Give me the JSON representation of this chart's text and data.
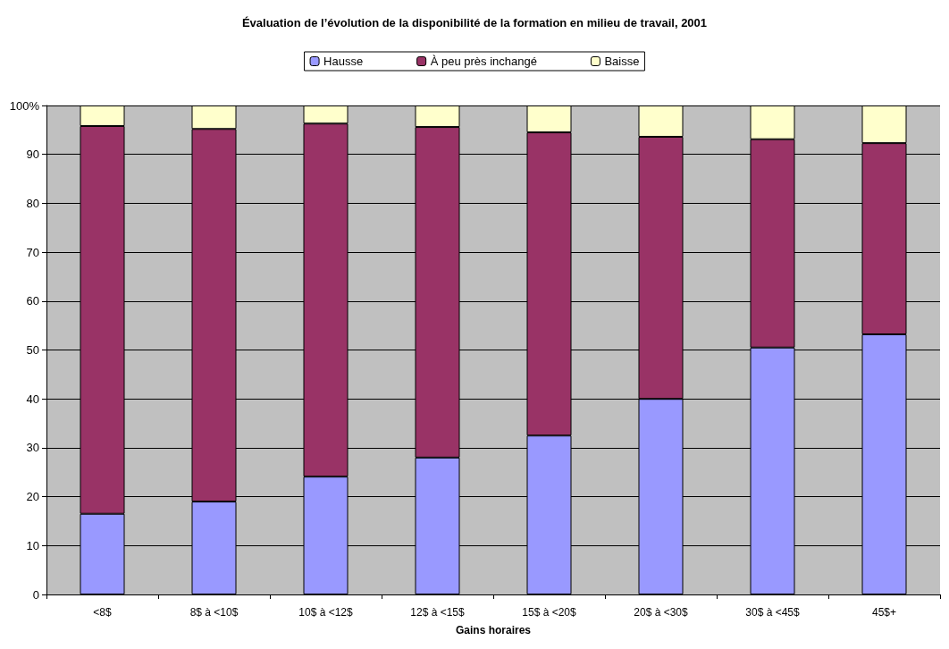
{
  "chart_data": {
    "type": "bar",
    "title": "Évaluation de l’évolution de la disponibilité de la formation en milieu de travail, 2001",
    "xlabel": "Gains horaires",
    "categories": [
      "<8$",
      "8$ à <10$",
      "10$ à <12$",
      "12$ à <15$",
      "15$ à <20$",
      "20$ à <30$",
      "30$ à <45$",
      "45$+"
    ],
    "stacked": true,
    "series": [
      {
        "name": "Hausse",
        "color": "#9999ff",
        "values": [
          16.5,
          19.0,
          24.1,
          28.0,
          32.5,
          40.0,
          50.5,
          53.2
        ]
      },
      {
        "name": "À peu près inchangé",
        "color": "#993366",
        "values": [
          79.3,
          76.2,
          72.2,
          67.6,
          62.0,
          53.6,
          42.6,
          39.1
        ]
      },
      {
        "name": "Baisse",
        "color": "#ffffcc",
        "values": [
          4.2,
          4.8,
          3.7,
          4.4,
          5.5,
          6.4,
          6.9,
          7.7
        ]
      }
    ],
    "ylim": [
      0,
      100
    ],
    "yticks": [
      0,
      10,
      20,
      30,
      40,
      50,
      60,
      70,
      80,
      90,
      {
        "value": 100,
        "label": "100%"
      }
    ],
    "grid": "y",
    "legend": "top"
  }
}
